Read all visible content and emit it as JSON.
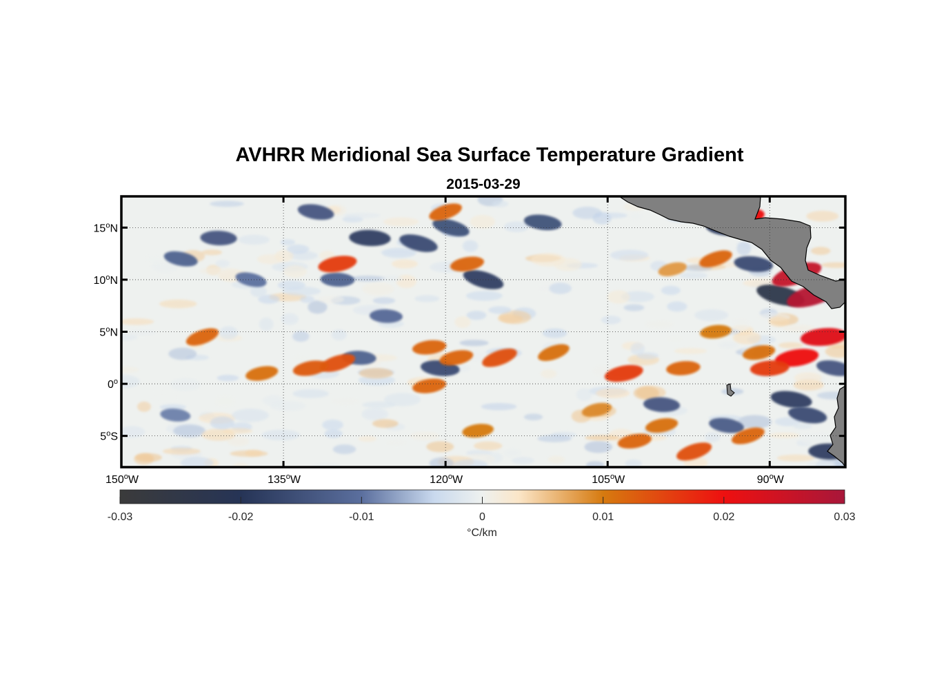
{
  "title": "AVHRR Meridional Sea Surface Temperature Gradient",
  "subtitle": "2015-03-29",
  "map": {
    "projection": "equirectangular",
    "lon_range": [
      -150,
      -83
    ],
    "lat_range": [
      -8,
      18
    ],
    "gridlines": "dotted",
    "land_color": "#808080",
    "lon_ticks": [
      {
        "deg": "150",
        "hemi": "W",
        "value": -150
      },
      {
        "deg": "135",
        "hemi": "W",
        "value": -135
      },
      {
        "deg": "120",
        "hemi": "W",
        "value": -120
      },
      {
        "deg": "105",
        "hemi": "W",
        "value": -105
      },
      {
        "deg": "90",
        "hemi": "W",
        "value": -90
      }
    ],
    "lat_ticks": [
      {
        "deg": "15",
        "hemi": "N",
        "value": 15
      },
      {
        "deg": "10",
        "hemi": "N",
        "value": 10
      },
      {
        "deg": "5",
        "hemi": "N",
        "value": 5
      },
      {
        "deg": "0",
        "hemi": "",
        "value": 0
      },
      {
        "deg": "5",
        "hemi": "S",
        "value": -5
      }
    ],
    "features": [
      {
        "lon": -127.0,
        "lat": 14.0,
        "value": -0.018
      },
      {
        "lon": -122.5,
        "lat": 13.5,
        "value": -0.016
      },
      {
        "lon": -141.0,
        "lat": 14.0,
        "value": -0.014
      },
      {
        "lon": -132.0,
        "lat": 16.5,
        "value": -0.014
      },
      {
        "lon": -119.5,
        "lat": 15.0,
        "value": -0.015
      },
      {
        "lon": -111.0,
        "lat": 15.5,
        "value": -0.015
      },
      {
        "lon": -116.5,
        "lat": 10.0,
        "value": -0.018
      },
      {
        "lon": -130.0,
        "lat": 10.0,
        "value": -0.012
      },
      {
        "lon": -144.5,
        "lat": 12.0,
        "value": -0.012
      },
      {
        "lon": -138.0,
        "lat": 10.0,
        "value": -0.01
      },
      {
        "lon": -89.0,
        "lat": 8.5,
        "value": -0.024
      },
      {
        "lon": -94.0,
        "lat": 15.0,
        "value": -0.018
      },
      {
        "lon": -91.5,
        "lat": 11.5,
        "value": -0.016
      },
      {
        "lon": -88.0,
        "lat": -1.5,
        "value": -0.018
      },
      {
        "lon": -86.5,
        "lat": -3.0,
        "value": -0.016
      },
      {
        "lon": -100.0,
        "lat": -2.0,
        "value": -0.014
      },
      {
        "lon": -94.0,
        "lat": -4.0,
        "value": -0.013
      },
      {
        "lon": -84.5,
        "lat": -6.5,
        "value": -0.018
      },
      {
        "lon": -84.0,
        "lat": 1.5,
        "value": -0.014
      },
      {
        "lon": -120.5,
        "lat": 1.5,
        "value": -0.016
      },
      {
        "lon": -128.0,
        "lat": 2.5,
        "value": -0.012
      },
      {
        "lon": -125.5,
        "lat": 6.5,
        "value": -0.011
      },
      {
        "lon": -145.0,
        "lat": -3.0,
        "value": -0.009
      },
      {
        "lon": -86.0,
        "lat": 8.5,
        "value": 0.028
      },
      {
        "lon": -87.5,
        "lat": 10.5,
        "value": 0.026
      },
      {
        "lon": -85.0,
        "lat": 4.5,
        "value": 0.022
      },
      {
        "lon": -87.5,
        "lat": 2.5,
        "value": 0.02
      },
      {
        "lon": -90.0,
        "lat": 1.5,
        "value": 0.016
      },
      {
        "lon": -103.5,
        "lat": 1.0,
        "value": 0.016
      },
      {
        "lon": -115.0,
        "lat": 2.5,
        "value": 0.014
      },
      {
        "lon": -130.0,
        "lat": 2.0,
        "value": 0.014
      },
      {
        "lon": -132.5,
        "lat": 1.5,
        "value": 0.013
      },
      {
        "lon": -137.0,
        "lat": 1.0,
        "value": 0.011
      },
      {
        "lon": -142.5,
        "lat": 4.5,
        "value": 0.012
      },
      {
        "lon": -119.0,
        "lat": 2.5,
        "value": 0.012
      },
      {
        "lon": -121.5,
        "lat": 3.5,
        "value": 0.012
      },
      {
        "lon": -110.0,
        "lat": 3.0,
        "value": 0.011
      },
      {
        "lon": -121.5,
        "lat": -0.2,
        "value": 0.012
      },
      {
        "lon": -97.0,
        "lat": -6.5,
        "value": 0.014
      },
      {
        "lon": -102.5,
        "lat": -5.5,
        "value": 0.012
      },
      {
        "lon": -100.0,
        "lat": -4.0,
        "value": 0.011
      },
      {
        "lon": -98.0,
        "lat": 1.5,
        "value": 0.012
      },
      {
        "lon": -92.0,
        "lat": -5.0,
        "value": 0.012
      },
      {
        "lon": -130.0,
        "lat": 11.5,
        "value": 0.016
      },
      {
        "lon": -118.0,
        "lat": 11.5,
        "value": 0.012
      },
      {
        "lon": -120.0,
        "lat": 16.5,
        "value": 0.012
      },
      {
        "lon": -95.0,
        "lat": 12.0,
        "value": 0.012
      },
      {
        "lon": -92.5,
        "lat": 16.0,
        "value": 0.02
      },
      {
        "lon": -95.0,
        "lat": 5.0,
        "value": 0.01
      },
      {
        "lon": -91.0,
        "lat": 3.0,
        "value": 0.011
      },
      {
        "lon": -106.0,
        "lat": -2.5,
        "value": 0.009
      },
      {
        "lon": -117.0,
        "lat": -4.5,
        "value": 0.01
      },
      {
        "lon": -99.0,
        "lat": 11.0,
        "value": 0.008
      }
    ]
  },
  "colorbar": {
    "label": "°C/km",
    "range": [
      -0.03,
      0.03
    ],
    "ticks": [
      {
        "label": "-0.03",
        "value": -0.03
      },
      {
        "label": "-0.02",
        "value": -0.02
      },
      {
        "label": "-0.01",
        "value": -0.01
      },
      {
        "label": "0",
        "value": 0
      },
      {
        "label": "0.01",
        "value": 0.01
      },
      {
        "label": "0.02",
        "value": 0.02
      },
      {
        "label": "0.03",
        "value": 0.03
      }
    ],
    "colormap": [
      {
        "value": -0.03,
        "color": "#3b3b3b"
      },
      {
        "value": -0.02,
        "color": "#263456"
      },
      {
        "value": -0.01,
        "color": "#5b6f9e"
      },
      {
        "value": -0.004,
        "color": "#c9d9ee"
      },
      {
        "value": 0,
        "color": "#eef1ef"
      },
      {
        "value": 0.003,
        "color": "#fbe6c8"
      },
      {
        "value": 0.01,
        "color": "#d67a0f"
      },
      {
        "value": 0.02,
        "color": "#ee1010"
      },
      {
        "value": 0.03,
        "color": "#a8173a"
      }
    ]
  }
}
